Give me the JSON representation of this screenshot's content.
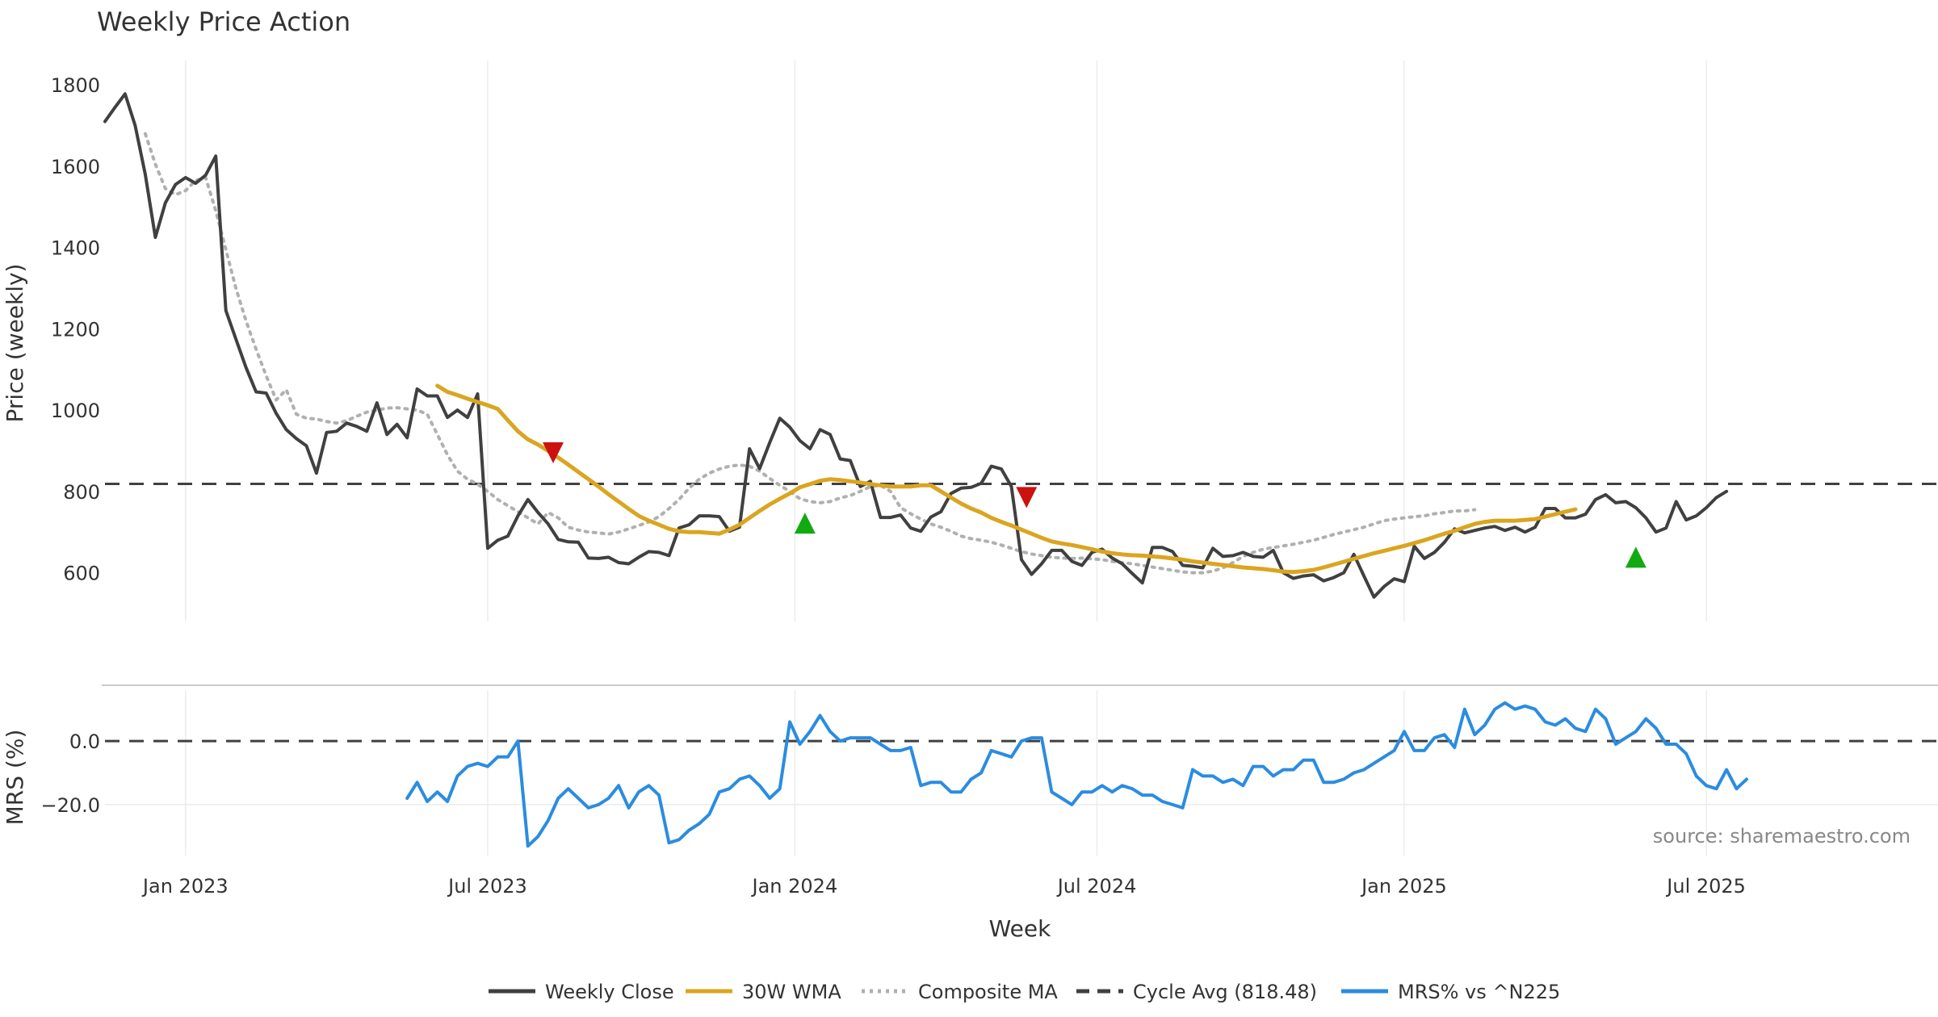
{
  "chart_data": [
    {
      "type": "line",
      "panel": "price",
      "title": "Weekly Price Action",
      "xlabel": "Week",
      "ylabel": "Price (weekly)",
      "ylim": [
        480,
        1860
      ],
      "yticks": [
        600,
        800,
        1000,
        1200,
        1400,
        1600,
        1800
      ],
      "x_tick_labels": [
        "Jan 2023",
        "Jul 2023",
        "Jan 2024",
        "Jul 2024",
        "Jan 2025",
        "Jul 2025"
      ],
      "x_week_range": [
        0,
        182
      ],
      "x_tick_weeks": [
        8,
        38,
        68.5,
        98.5,
        129,
        159
      ],
      "series": [
        {
          "name": "Weekly Close",
          "color": "#404040",
          "style": "solid",
          "x_start": 0,
          "values": [
            1710,
            1745,
            1778,
            1700,
            1580,
            1425,
            1510,
            1555,
            1572,
            1558,
            1578,
            1625,
            1245,
            1175,
            1105,
            1045,
            1042,
            992,
            952,
            930,
            912,
            845,
            945,
            948,
            968,
            960,
            948,
            1018,
            940,
            965,
            932,
            1052,
            1035,
            1035,
            982,
            1000,
            982,
            1040,
            660,
            680,
            690,
            740,
            780,
            748,
            720,
            682,
            676,
            675,
            636,
            635,
            638,
            625,
            622,
            638,
            652,
            650,
            642,
            710,
            718,
            740,
            740,
            738,
            702,
            712,
            905,
            856,
            920,
            980,
            958,
            925,
            905,
            952,
            940,
            880,
            876,
            812,
            825,
            736,
            736,
            742,
            710,
            702,
            737,
            750,
            795,
            808,
            810,
            820,
            862,
            855,
            812,
            632,
            596,
            622,
            655,
            655,
            628,
            618,
            650,
            658,
            636,
            622,
            598,
            575,
            662,
            662,
            652,
            618,
            616,
            612,
            660,
            640,
            642,
            650,
            640,
            638,
            655,
            600,
            586,
            592,
            595,
            580,
            588,
            600,
            645,
            592,
            540,
            566,
            585,
            578,
            665,
            635,
            650,
            675,
            708,
            698,
            704,
            710,
            714,
            704,
            712,
            700,
            712,
            758,
            758,
            735,
            735,
            744,
            780,
            792,
            772,
            775,
            760,
            735,
            700,
            710,
            775,
            730,
            740,
            760,
            785,
            800
          ]
        },
        {
          "name": "30W WMA",
          "color": "#DAA520",
          "style": "solid",
          "x_start": 33,
          "values": [
            1060,
            1045,
            1037,
            1028,
            1020,
            1012,
            1003,
            975,
            948,
            928,
            915,
            900,
            883,
            866,
            848,
            830,
            812,
            793,
            775,
            757,
            740,
            728,
            718,
            708,
            702,
            700,
            700,
            698,
            696,
            706,
            718,
            735,
            752,
            768,
            782,
            795,
            810,
            818,
            826,
            830,
            828,
            825,
            822,
            818,
            815,
            812,
            812,
            812,
            815,
            815,
            800,
            785,
            770,
            758,
            748,
            735,
            725,
            716,
            706,
            696,
            686,
            677,
            672,
            668,
            663,
            658,
            652,
            648,
            645,
            643,
            642,
            640,
            638,
            635,
            632,
            628,
            625,
            622,
            619,
            616,
            613,
            611,
            609,
            606,
            603,
            602,
            604,
            607,
            613,
            620,
            627,
            634,
            641,
            648,
            654,
            660,
            666,
            673,
            680,
            688,
            696,
            703,
            712,
            720,
            725,
            728,
            728,
            728,
            730,
            732,
            738,
            744,
            750,
            756
          ]
        },
        {
          "name": "Composite MA",
          "color": "#b0b0b0",
          "style": "dotted",
          "x_start": 4,
          "values": [
            1680,
            1605,
            1545,
            1530,
            1540,
            1565,
            1572,
            1490,
            1395,
            1300,
            1220,
            1150,
            1085,
            1025,
            1050,
            990,
            980,
            978,
            972,
            968,
            974,
            985,
            995,
            1000,
            1005,
            1006,
            1003,
            1000,
            990,
            940,
            890,
            850,
            830,
            818,
            800,
            780,
            765,
            750,
            735,
            720,
            748,
            735,
            712,
            705,
            700,
            698,
            695,
            700,
            708,
            716,
            725,
            738,
            758,
            780,
            808,
            830,
            845,
            855,
            862,
            865,
            862,
            850,
            832,
            815,
            800,
            782,
            775,
            772,
            775,
            784,
            790,
            800,
            812,
            815,
            800,
            760,
            745,
            732,
            720,
            712,
            702,
            690,
            684,
            680,
            675,
            668,
            660,
            652,
            646,
            642,
            638,
            636,
            635,
            636,
            634,
            632,
            628,
            625,
            622,
            618,
            614,
            610,
            606,
            602,
            600,
            600,
            604,
            612,
            625,
            640,
            650,
            658,
            662,
            666,
            670,
            675,
            680,
            687,
            694,
            700,
            706,
            712,
            720,
            728,
            732,
            735,
            738,
            740,
            745,
            748,
            752,
            752,
            755
          ]
        },
        {
          "name": "Cycle Avg (818.48)",
          "color": "#404040",
          "style": "dashed",
          "constant": 818.48
        }
      ],
      "signals": [
        {
          "type": "sell",
          "x": 44.5,
          "y": 895,
          "color": "#cc1111"
        },
        {
          "type": "buy",
          "x": 69.5,
          "y": 722,
          "color": "#11aa11"
        },
        {
          "type": "sell",
          "x": 91.5,
          "y": 785,
          "color": "#cc1111"
        },
        {
          "type": "buy",
          "x": 152,
          "y": 638,
          "color": "#11aa11"
        }
      ]
    },
    {
      "type": "line",
      "panel": "mrs",
      "ylabel": "MRS (%)",
      "ylim": [
        -36,
        16
      ],
      "yticks": [
        0,
        -20
      ],
      "ytick_labels": [
        "0.0",
        "−20.0"
      ],
      "series": [
        {
          "name": "MRS% vs ^N225",
          "color": "#2b8ce0",
          "style": "solid",
          "x_start": 30,
          "values": [
            -18,
            -13,
            -19,
            -16,
            -19,
            -11,
            -8,
            -7,
            -8,
            -5,
            -5,
            0,
            -33,
            -30,
            -25,
            -18,
            -15,
            -18,
            -21,
            -20,
            -18,
            -14,
            -21,
            -16,
            -14,
            -17,
            -32,
            -31,
            -28,
            -26,
            -23,
            -16,
            -15,
            -12,
            -11,
            -14,
            -18,
            -15,
            6,
            -1,
            3,
            8,
            3,
            0,
            1,
            1,
            1,
            -1,
            -3,
            -3,
            -2,
            -14,
            -13,
            -13,
            -16,
            -16,
            -12,
            -10,
            -3,
            -4,
            -5,
            0,
            1,
            1,
            -16,
            -18,
            -20,
            -16,
            -16,
            -14,
            -16,
            -14,
            -15,
            -17,
            -17,
            -19,
            -20,
            -21,
            -9,
            -11,
            -11,
            -13,
            -12,
            -14,
            -8,
            -8,
            -11,
            -9,
            -9,
            -6,
            -6,
            -13,
            -13,
            -12,
            -10,
            -9,
            -7,
            -5,
            -3,
            3,
            -3,
            -3,
            1,
            2,
            -2,
            10,
            2,
            5,
            10,
            12,
            10,
            11,
            10,
            6,
            5,
            7,
            4,
            3,
            10,
            7,
            -1,
            1,
            3,
            7,
            4,
            -1,
            -1,
            -4,
            -11,
            -14,
            -15,
            -9,
            -15,
            -12
          ]
        },
        {
          "name": "MRS zero line",
          "color": "#404040",
          "style": "dashed",
          "constant": 0
        }
      ]
    }
  ],
  "legend": {
    "items": [
      {
        "label": "Weekly Close",
        "color": "#404040",
        "style": "solid"
      },
      {
        "label": "30W WMA",
        "color": "#DAA520",
        "style": "solid"
      },
      {
        "label": "Composite MA",
        "color": "#b0b0b0",
        "style": "dotted"
      },
      {
        "label": "Cycle Avg (818.48)",
        "color": "#404040",
        "style": "dashed"
      },
      {
        "label": "MRS% vs ^N225",
        "color": "#2b8ce0",
        "style": "solid"
      }
    ]
  },
  "source_note": "source: sharemaestro.com"
}
